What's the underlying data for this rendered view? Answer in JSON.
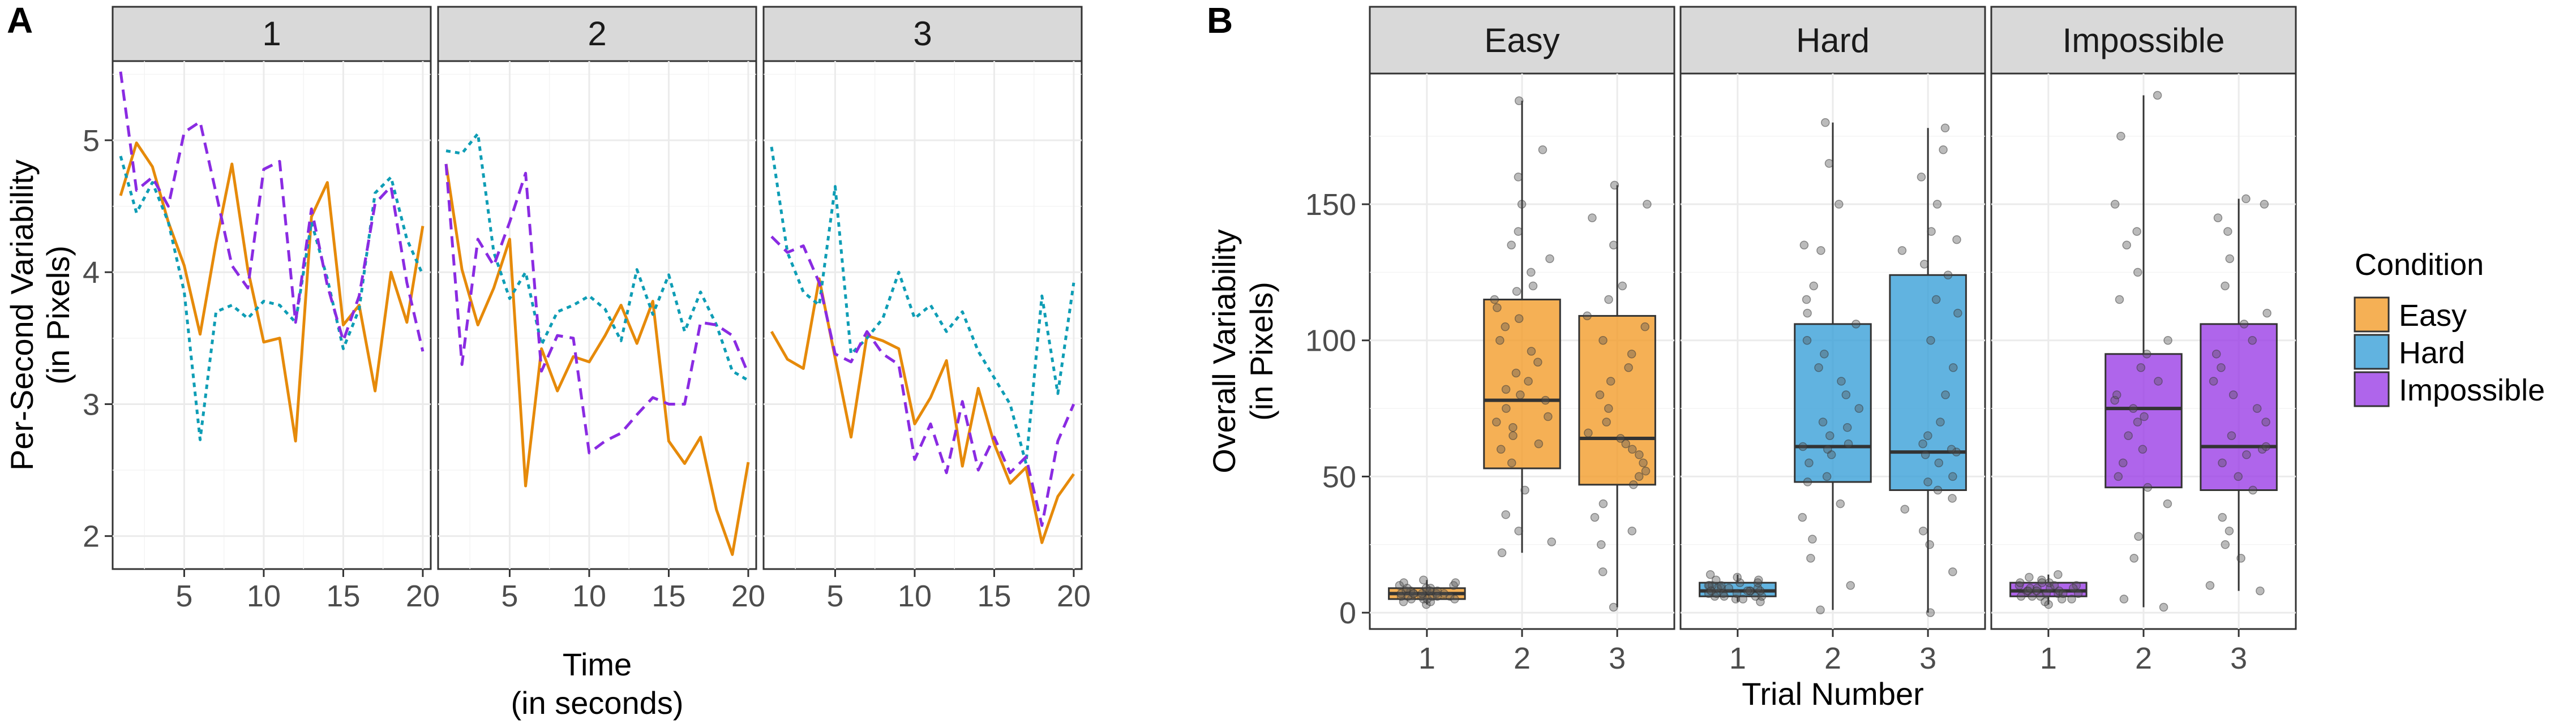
{
  "colors": {
    "easy": "#F39C2B",
    "hard": "#3AA0D8",
    "impossible": "#9B3FE6",
    "trial1": "#E68A0A",
    "trial2": "#0E9DB5",
    "trial3": "#8A2BE2"
  },
  "chart_data": [
    {
      "type": "line",
      "panel_tag": "A",
      "facets": [
        "1",
        "2",
        "3"
      ],
      "xlabel_line1": "Time",
      "xlabel_line2": "(in seconds)",
      "ylabel_line1": "Per-Second Variability",
      "ylabel_line2": "(in Pixels)",
      "xlim": [
        0.5,
        20.5
      ],
      "ylim": [
        1.75,
        5.6
      ],
      "xticks": [
        5,
        10,
        15,
        20
      ],
      "yticks": [
        2,
        3,
        4,
        5
      ],
      "x": [
        1,
        2,
        3,
        4,
        5,
        6,
        7,
        8,
        9,
        10,
        11,
        12,
        13,
        14,
        15,
        16,
        17,
        18,
        19,
        20
      ],
      "facet_series": [
        [
          {
            "name": "Easy",
            "style": "solid",
            "values": [
              4.58,
              4.98,
              4.8,
              4.38,
              4.05,
              3.53,
              4.22,
              4.82,
              4.02,
              3.47,
              3.5,
              2.72,
              4.42,
              4.68,
              3.6,
              3.75,
              3.1,
              4.0,
              3.62,
              4.35
            ]
          },
          {
            "name": "Hard",
            "style": "dotted",
            "values": [
              4.88,
              4.45,
              4.68,
              4.38,
              3.85,
              2.73,
              3.7,
              3.75,
              3.65,
              3.78,
              3.75,
              3.62,
              4.38,
              3.95,
              3.42,
              3.72,
              4.6,
              4.72,
              4.25,
              3.98
            ]
          },
          {
            "name": "Impossible",
            "style": "dashed",
            "values": [
              5.52,
              4.62,
              4.72,
              4.5,
              5.06,
              5.14,
              4.6,
              4.05,
              3.88,
              4.78,
              4.84,
              3.62,
              4.48,
              3.9,
              3.48,
              3.82,
              4.52,
              4.65,
              3.92,
              3.4
            ]
          }
        ],
        [
          {
            "name": "Easy",
            "style": "solid",
            "values": [
              4.82,
              4.02,
              3.6,
              3.88,
              4.25,
              2.38,
              3.42,
              3.1,
              3.36,
              3.32,
              3.52,
              3.75,
              3.46,
              3.78,
              2.72,
              2.55,
              2.75,
              2.2,
              1.86,
              2.56
            ]
          },
          {
            "name": "Hard",
            "style": "dotted",
            "values": [
              4.92,
              4.9,
              5.05,
              4.15,
              3.8,
              4.0,
              3.45,
              3.7,
              3.75,
              3.82,
              3.72,
              3.48,
              4.02,
              3.68,
              3.98,
              3.55,
              3.85,
              3.6,
              3.25,
              3.18
            ]
          },
          {
            "name": "Impossible",
            "style": "dashed",
            "values": [
              4.82,
              3.3,
              4.25,
              4.05,
              4.38,
              4.75,
              3.25,
              3.52,
              3.5,
              2.63,
              2.72,
              2.78,
              2.92,
              3.05,
              3.0,
              3.0,
              3.62,
              3.6,
              3.52,
              3.23
            ]
          }
        ],
        [
          {
            "name": "Easy",
            "style": "solid",
            "values": [
              3.55,
              3.34,
              3.27,
              3.95,
              3.35,
              2.75,
              3.52,
              3.48,
              3.42,
              2.85,
              3.05,
              3.33,
              2.53,
              3.12,
              2.7,
              2.4,
              2.52,
              1.95,
              2.3,
              2.47
            ]
          },
          {
            "name": "Hard",
            "style": "dotted",
            "values": [
              4.95,
              4.15,
              3.85,
              3.75,
              4.65,
              3.38,
              3.5,
              3.65,
              4.0,
              3.65,
              3.75,
              3.55,
              3.7,
              3.4,
              3.2,
              3.0,
              2.55,
              3.82,
              3.08,
              3.92
            ]
          },
          {
            "name": "Impossible",
            "style": "dashed",
            "values": [
              4.27,
              4.15,
              4.2,
              3.92,
              3.38,
              3.32,
              3.55,
              3.38,
              3.3,
              2.58,
              2.85,
              2.48,
              3.02,
              2.5,
              2.75,
              2.48,
              2.6,
              2.08,
              2.72,
              3.0
            ]
          }
        ]
      ]
    },
    {
      "type": "box",
      "panel_tag": "B",
      "facets": [
        "Easy",
        "Hard",
        "Impossible"
      ],
      "categories": [
        "1",
        "2",
        "3"
      ],
      "xlabel": "Trial Number",
      "ylabel_line1": "Overall Variability",
      "ylabel_line2": "(in Pixels)",
      "ylim": [
        -6,
        198
      ],
      "yticks": [
        0,
        50,
        100,
        150
      ],
      "legend": {
        "title": "Condition",
        "items": [
          "Easy",
          "Hard",
          "Impossible"
        ],
        "position": "right"
      },
      "boxes": [
        [
          {
            "min": 3,
            "q1": 5,
            "median": 7,
            "q3": 9,
            "max": 12
          },
          {
            "min": 22,
            "q1": 53,
            "median": 78,
            "q3": 115,
            "max": 188
          },
          {
            "min": 2,
            "q1": 47,
            "median": 64,
            "q3": 109,
            "max": 157
          }
        ],
        [
          {
            "min": 4,
            "q1": 6,
            "median": 8,
            "q3": 11,
            "max": 14
          },
          {
            "min": 1,
            "q1": 48,
            "median": 61,
            "q3": 106,
            "max": 180
          },
          {
            "min": 0,
            "q1": 45,
            "median": 59,
            "q3": 124,
            "max": 178
          }
        ],
        [
          {
            "min": 3,
            "q1": 6,
            "median": 8,
            "q3": 11,
            "max": 14
          },
          {
            "min": 2,
            "q1": 46,
            "median": 75,
            "q3": 95,
            "max": 190
          },
          {
            "min": 8,
            "q1": 45,
            "median": 61,
            "q3": 106,
            "max": 152
          }
        ]
      ],
      "points": [
        [
          [
            3,
            4,
            4,
            5,
            5,
            5,
            6,
            6,
            6,
            6,
            7,
            7,
            7,
            7,
            8,
            8,
            8,
            8,
            9,
            9,
            9,
            10,
            10,
            11,
            11,
            12,
            5,
            6,
            7,
            8,
            6,
            7
          ],
          [
            22,
            26,
            30,
            36,
            45,
            55,
            60,
            62,
            65,
            68,
            70,
            72,
            75,
            78,
            80,
            82,
            85,
            88,
            92,
            96,
            100,
            105,
            108,
            112,
            115,
            118,
            120,
            125,
            130,
            135,
            140,
            150,
            160,
            170,
            188
          ],
          [
            2,
            15,
            25,
            30,
            35,
            40,
            47,
            50,
            52,
            55,
            58,
            60,
            62,
            64,
            66,
            70,
            75,
            80,
            85,
            90,
            95,
            100,
            105,
            109,
            115,
            120,
            135,
            145,
            150,
            157
          ]
        ],
        [
          [
            4,
            5,
            5,
            6,
            6,
            6,
            7,
            7,
            7,
            8,
            8,
            8,
            8,
            9,
            9,
            9,
            10,
            10,
            10,
            11,
            11,
            12,
            12,
            13,
            14,
            6,
            7,
            8,
            9,
            10
          ],
          [
            1,
            10,
            20,
            27,
            35,
            40,
            48,
            50,
            55,
            58,
            60,
            61,
            62,
            65,
            68,
            70,
            75,
            80,
            85,
            90,
            95,
            100,
            106,
            110,
            115,
            120,
            133,
            135,
            150,
            165,
            180
          ],
          [
            0,
            15,
            25,
            30,
            38,
            42,
            45,
            48,
            50,
            55,
            58,
            59,
            60,
            62,
            65,
            70,
            80,
            90,
            100,
            110,
            115,
            124,
            128,
            133,
            137,
            140,
            150,
            160,
            170,
            178
          ]
        ],
        [
          [
            3,
            4,
            5,
            5,
            6,
            6,
            7,
            7,
            7,
            8,
            8,
            8,
            9,
            9,
            9,
            10,
            10,
            11,
            11,
            12,
            13,
            14,
            6,
            7,
            8,
            9,
            10,
            11
          ],
          [
            2,
            5,
            20,
            28,
            40,
            46,
            50,
            55,
            60,
            65,
            70,
            72,
            75,
            78,
            80,
            85,
            90,
            95,
            100,
            115,
            125,
            135,
            140,
            150,
            175,
            190
          ],
          [
            8,
            10,
            20,
            25,
            30,
            35,
            45,
            50,
            55,
            58,
            60,
            61,
            65,
            70,
            75,
            80,
            85,
            90,
            95,
            100,
            106,
            110,
            120,
            130,
            140,
            145,
            150,
            152
          ]
        ]
      ]
    }
  ]
}
